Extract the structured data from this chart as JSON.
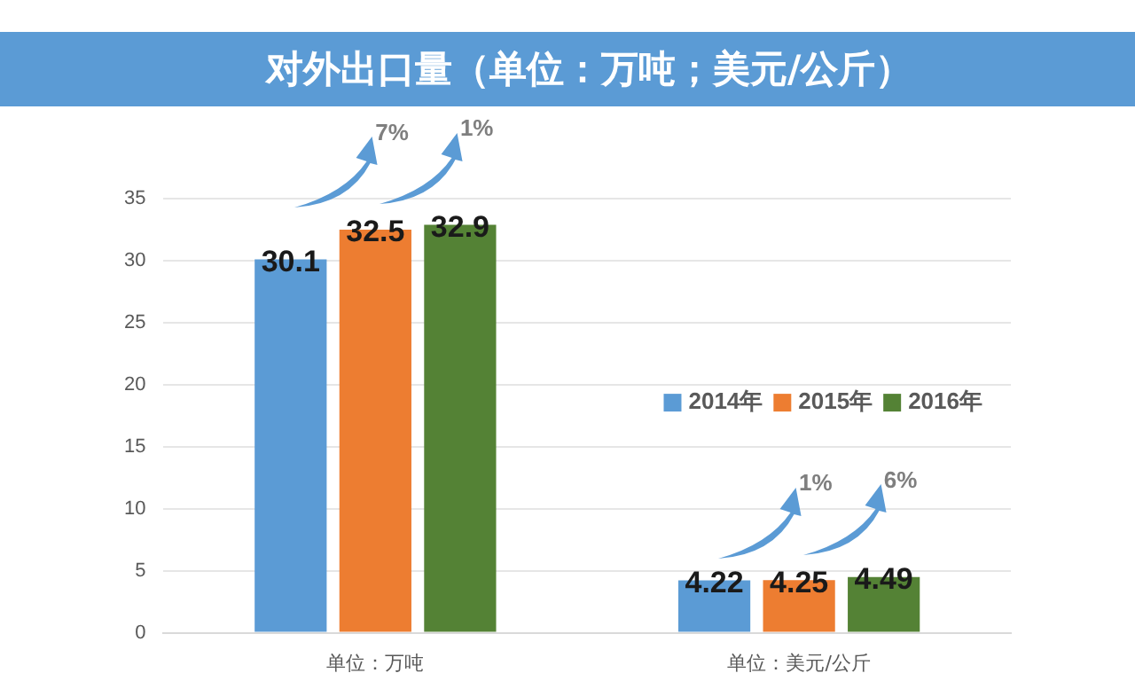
{
  "chart_data": {
    "type": "bar",
    "title": "对外出口量（单位：万吨；美元/公斤）",
    "categories": [
      "单位：万吨",
      "单位：美元/公斤"
    ],
    "series": [
      {
        "name": "2014年",
        "color": "#5b9bd5",
        "values": [
          30.1,
          4.22
        ]
      },
      {
        "name": "2015年",
        "color": "#ed7d31",
        "values": [
          32.5,
          4.25
        ]
      },
      {
        "name": "2016年",
        "color": "#548235",
        "values": [
          32.9,
          4.49
        ]
      }
    ],
    "ylim": [
      0,
      35
    ],
    "yticks": [
      0,
      5,
      10,
      15,
      20,
      25,
      30,
      35
    ],
    "grid": "y",
    "legend": "right",
    "data_labels": true,
    "annotations": [
      "7%",
      "1%",
      "1%",
      "6%"
    ]
  }
}
